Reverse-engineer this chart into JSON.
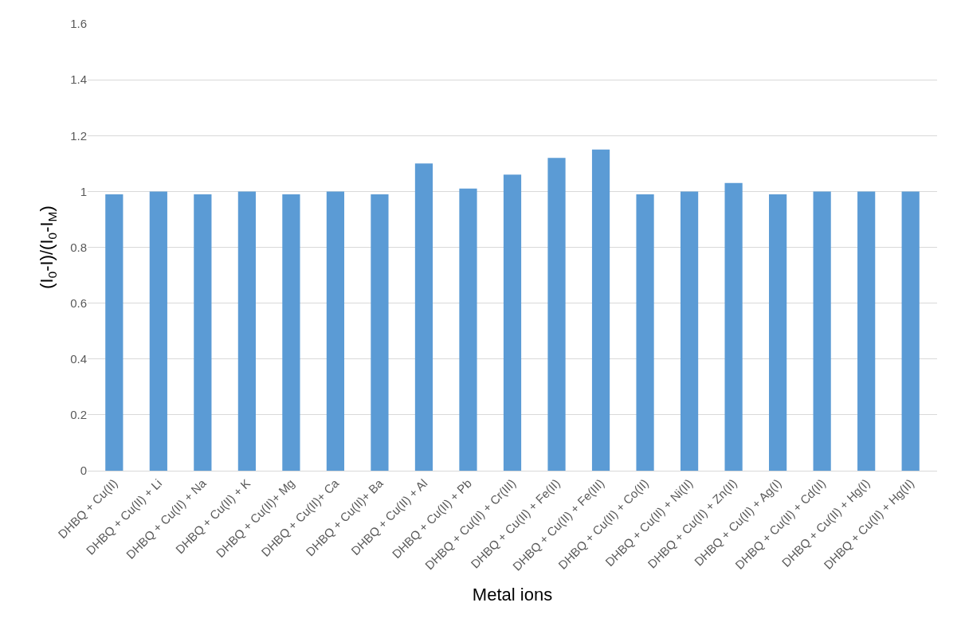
{
  "chart_data": {
    "type": "bar",
    "xlabel": "Metal ions",
    "ylabel": "(I$_{0}$-I)/(I$_{0}$-I$_{M}$)",
    "categories": [
      "DHBQ + Cu(II)",
      "DHBQ + Cu(II) + Li",
      "DHBQ + Cu(II) + Na",
      "DHBQ + Cu(II) + K",
      "DHBQ + Cu(II)+ Mg",
      "DHBQ + Cu(II)+ Ca",
      "DHBQ + Cu(II)+ Ba",
      "DHBQ + Cu(II) + Al",
      "DHBQ + Cu(II) + Pb",
      "DHBQ + Cu(II) + Cr(III)",
      "DHBQ + Cu(II) + Fe(II)",
      "DHBQ + Cu(II) + Fe(III)",
      "DHBQ + Cu(II) + Co(II)",
      "DHBQ + Cu(II) + Ni(II)",
      "DHBQ + Cu(II) + Zn(II)",
      "DHBQ + Cu(II) + Ag(I)",
      "DHBQ + Cu(II) + Cd(II)",
      "DHBQ + Cu(II) + Hg(I)",
      "DHBQ + Cu(II) + Hg(II)"
    ],
    "values": [
      0.99,
      1.0,
      0.99,
      1.0,
      0.99,
      1.0,
      0.99,
      1.1,
      1.01,
      1.06,
      1.12,
      1.15,
      0.99,
      1.0,
      1.03,
      0.99,
      1.0,
      1.0,
      1.0
    ],
    "color": "#5b9bd5",
    "ylim": [
      0,
      1.6
    ],
    "yticks": [
      0,
      {
        "value": 0.2,
        "label": "0.2"
      },
      {
        "value": 0.4,
        "label": "0.4"
      },
      {
        "value": 0.6,
        "label": "0.6"
      },
      {
        "value": 0.8,
        "label": "0.8"
      },
      1,
      {
        "value": 1.2,
        "label": "1.2"
      },
      {
        "value": 1.4,
        "label": "1.4"
      },
      {
        "value": 1.6,
        "label": "1.6"
      }
    ],
    "grid": "y"
  }
}
